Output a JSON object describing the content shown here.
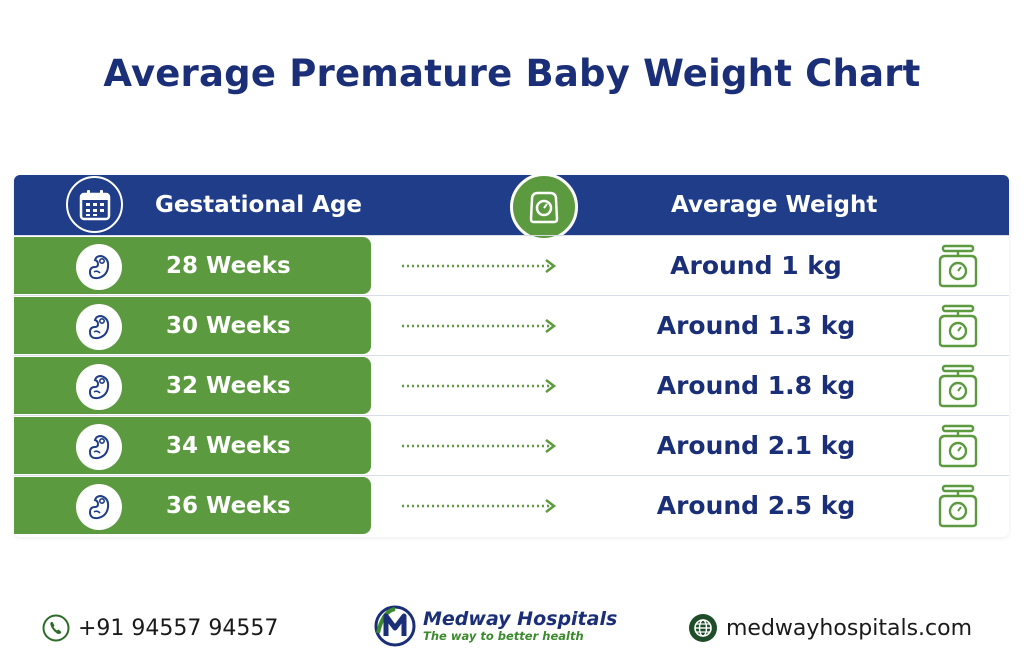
{
  "title": "Average Premature Baby Weight Chart",
  "header": {
    "age_label": "Gestational Age",
    "weight_label": "Average Weight"
  },
  "rows": [
    {
      "age": "28 Weeks",
      "weight": "Around 1 kg"
    },
    {
      "age": "30 Weeks",
      "weight": "Around 1.3 kg"
    },
    {
      "age": "32 Weeks",
      "weight": "Around 1.8 kg"
    },
    {
      "age": "34 Weeks",
      "weight": "Around 2.1 kg"
    },
    {
      "age": "36 Weeks",
      "weight": "Around 2.5 kg"
    }
  ],
  "footer": {
    "phone": "+91 94557 94557",
    "brand_name": "Medway Hospitals",
    "brand_tagline": "The way to better health",
    "website": "medwayhospitals.com"
  },
  "icons": {
    "header_age": "calendar-icon",
    "header_weight": "scale-icon",
    "row_left": "baby-icon",
    "row_right": "scale-icon",
    "phone": "phone-icon",
    "web": "globe-icon"
  },
  "colors": {
    "navy": "#1f3d88",
    "green": "#5c9a3f",
    "title": "#1b2f78"
  }
}
